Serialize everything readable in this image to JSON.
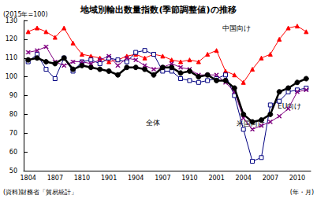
{
  "chart_data": {
    "type": "line",
    "title": "地域別輸出数量指数(季節調整値)の推移",
    "y_label": "(2015年=100)",
    "x_label": "(年・月)",
    "source": "(資料)財務省「貿易統計」",
    "categories": [
      "1804",
      null,
      null,
      "1807",
      null,
      null,
      "1810",
      null,
      null,
      "1901",
      null,
      null,
      "1904",
      null,
      null,
      "1907",
      null,
      null,
      "1910",
      null,
      null,
      "2001",
      null,
      null,
      "2004",
      null,
      null,
      "2007",
      null,
      null,
      "2010",
      null
    ],
    "series": [
      {
        "name": "中国向け",
        "color": "#ff0000",
        "marker": "triangle",
        "values": [
          124,
          126,
          124,
          121,
          126,
          118,
          112,
          111,
          110,
          108,
          109,
          111,
          112,
          110,
          112,
          111,
          109,
          108,
          109,
          108,
          112,
          114,
          103,
          101,
          97,
          104,
          110,
          112,
          120,
          126,
          127,
          124
        ]
      },
      {
        "name": "全体",
        "color": "#000000",
        "marker": "circle",
        "values": [
          109,
          110,
          108,
          107,
          110,
          104,
          106,
          105,
          104,
          103,
          101,
          105,
          105,
          104,
          101,
          105,
          105,
          102,
          103,
          100,
          101,
          98,
          98,
          94,
          80,
          76,
          77,
          80,
          92,
          94,
          97,
          99
        ]
      },
      {
        "name": "米国向け",
        "color": "#000080",
        "marker": "square",
        "values": [
          108,
          112,
          104,
          99,
          110,
          103,
          108,
          109,
          107,
          110,
          109,
          108,
          113,
          114,
          112,
          103,
          103,
          99,
          98,
          97,
          98,
          99,
          101,
          90,
          72,
          55,
          57,
          85,
          87,
          92,
          93,
          94
        ]
      },
      {
        "name": "EU向け",
        "color": "#800080",
        "marker": "x",
        "values": [
          113,
          114,
          116,
          108,
          106,
          108,
          108,
          107,
          109,
          111,
          106,
          110,
          109,
          106,
          104,
          105,
          107,
          105,
          104,
          101,
          101,
          101,
          97,
          92,
          78,
          72,
          74,
          76,
          79,
          83,
          92,
          93
        ]
      }
    ],
    "ylim": [
      50,
      130
    ],
    "yticks": [
      50,
      60,
      70,
      80,
      90,
      100,
      110,
      120,
      130
    ],
    "grid": false,
    "legend": "none"
  }
}
